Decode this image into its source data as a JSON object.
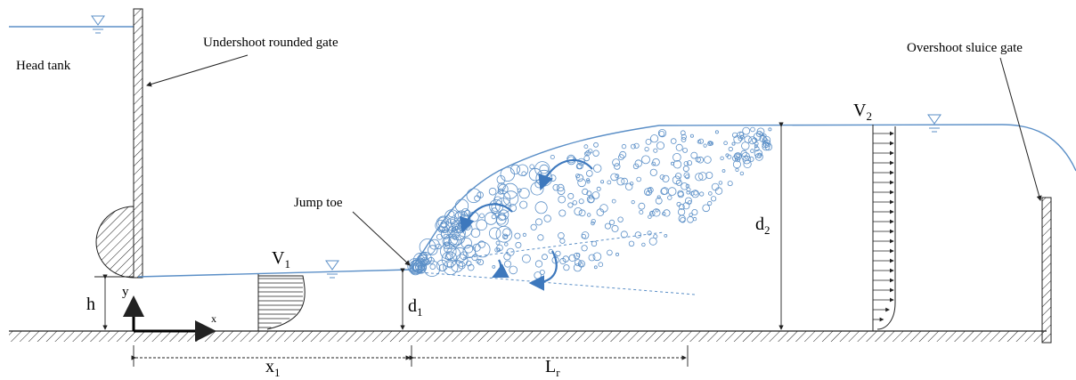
{
  "labels": {
    "head_tank": "Head tank",
    "undershoot_gate": "Undershoot rounded gate",
    "jump_toe": "Jump toe",
    "overshoot_gate": "Overshoot sluice gate"
  },
  "symbols": {
    "v1": {
      "base": "V",
      "sub": "1"
    },
    "v2": {
      "base": "V",
      "sub": "2"
    },
    "d1": {
      "base": "d",
      "sub": "1"
    },
    "d2": {
      "base": "d",
      "sub": "2"
    },
    "x1": {
      "base": "x",
      "sub": "1"
    },
    "lr": {
      "base": "L",
      "sub": "r"
    },
    "h": "h",
    "y": "y",
    "x": "x"
  }
}
